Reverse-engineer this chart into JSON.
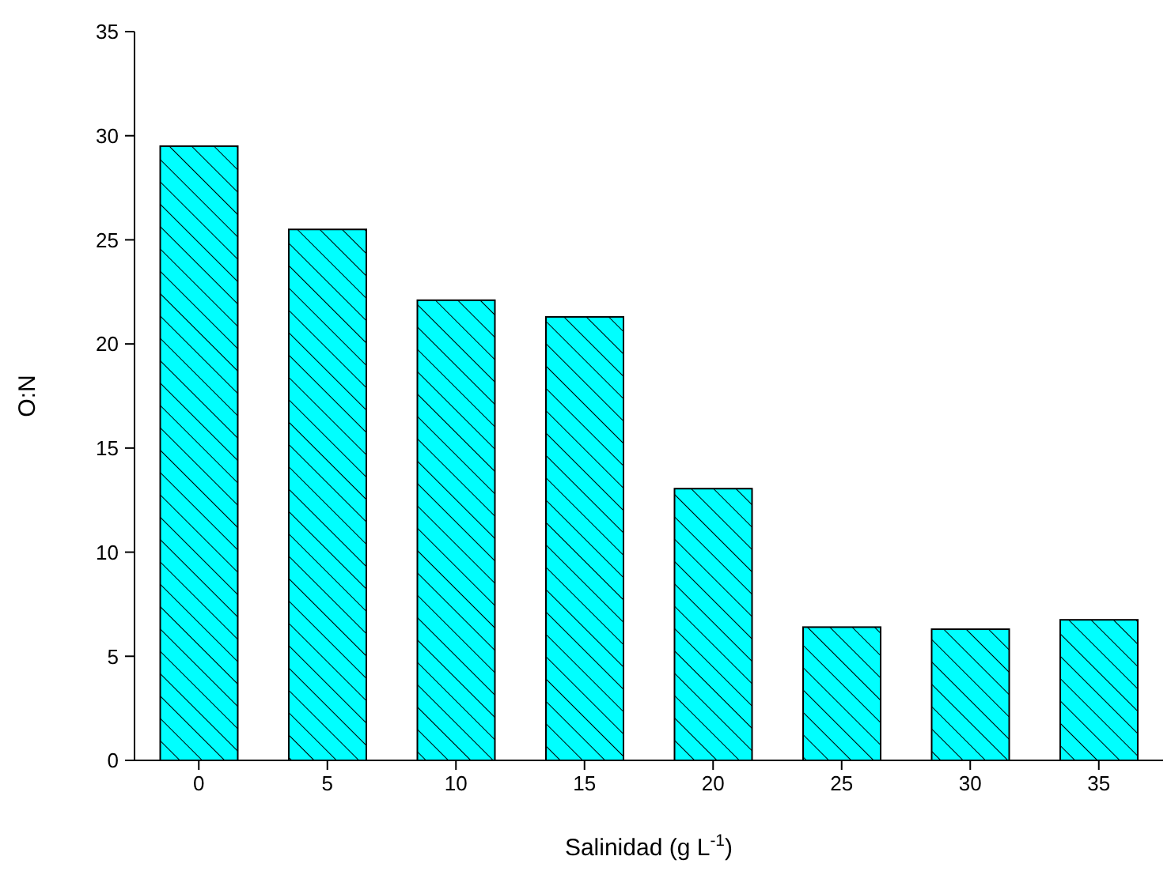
{
  "chart_data": {
    "type": "bar",
    "xlabel": "Salinidad (g L$^{-1}$)",
    "ylabel": "O:N",
    "categories": [
      "0",
      "5",
      "10",
      "15",
      "20",
      "25",
      "30",
      "35"
    ],
    "values": [
      29.5,
      25.5,
      22.1,
      21.3,
      13.05,
      6.4,
      6.3,
      6.75
    ],
    "color": "#00ffff",
    "ylim": [
      0,
      35
    ],
    "yticks": [
      0,
      5,
      10,
      15,
      20,
      25,
      30,
      35
    ],
    "grid": false
  }
}
